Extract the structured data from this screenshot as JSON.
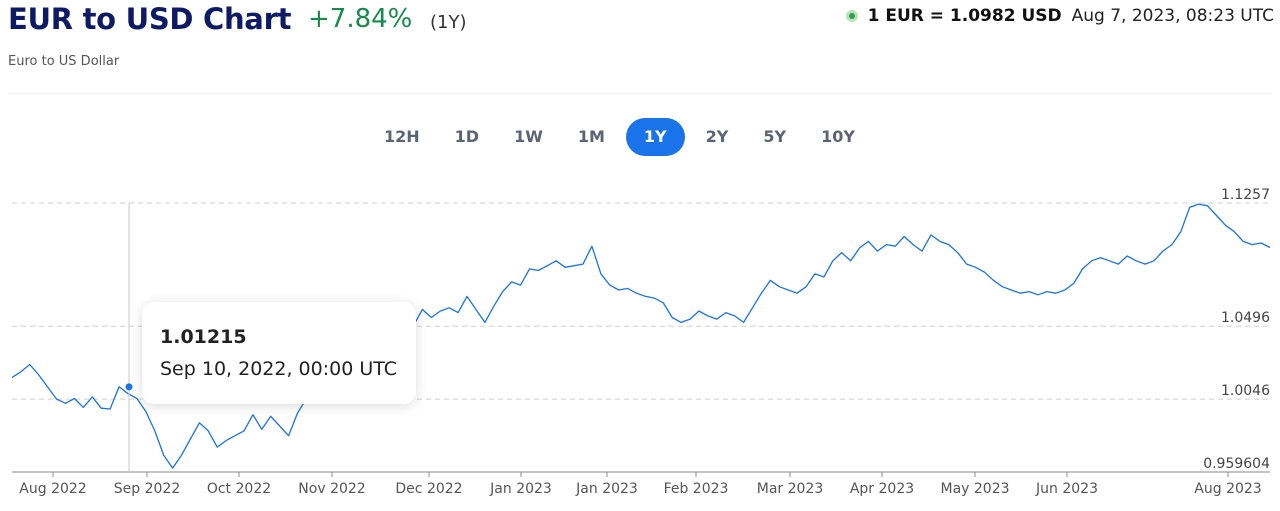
{
  "header": {
    "title": "EUR to USD Chart",
    "change": "+7.84%",
    "period": "(1Y)",
    "subtitle": "Euro to US Dollar",
    "rate": "1 EUR = 1.0982 USD",
    "timestamp": "Aug 7, 2023, 08:23 UTC"
  },
  "range_tabs": [
    {
      "label": "12H",
      "active": false
    },
    {
      "label": "1D",
      "active": false
    },
    {
      "label": "1W",
      "active": false
    },
    {
      "label": "1M",
      "active": false
    },
    {
      "label": "1Y",
      "active": true
    },
    {
      "label": "2Y",
      "active": false
    },
    {
      "label": "5Y",
      "active": false
    },
    {
      "label": "10Y",
      "active": false
    }
  ],
  "tooltip": {
    "value": "1.01215",
    "date": "Sep 10, 2022, 00:00 UTC"
  },
  "colors": {
    "line": "#1a73e8",
    "accent": "#1a73e8",
    "positive": "#178a4e",
    "title": "#0d1a66"
  },
  "chart_data": {
    "type": "line",
    "title": "EUR to USD Chart",
    "xlabel": "",
    "ylabel": "",
    "ylim": [
      0.959604,
      1.1257
    ],
    "grid": true,
    "y_ticks": [
      "1.1257",
      "1.0496",
      "1.0046",
      "0.959604"
    ],
    "x_ticks": [
      "Aug 2022",
      "Sep 2022",
      "Oct 2022",
      "Nov 2022",
      "Dec 2022",
      "Jan 2023",
      "Jan 2023",
      "Feb 2023",
      "Mar 2023",
      "Apr 2023",
      "May 2023",
      "Jun 2023",
      "Aug 2023"
    ],
    "series": [
      {
        "values": [
          1.018,
          1.0215,
          1.026,
          1.0195,
          1.012,
          1.0046,
          1.002,
          1.005,
          0.9995,
          1.006,
          0.999,
          0.9985,
          1.0122,
          1.008,
          1.005,
          0.997,
          0.985,
          0.97,
          0.962,
          0.97,
          0.98,
          0.99,
          0.985,
          0.975,
          0.979,
          0.982,
          0.985,
          0.995,
          0.986,
          0.994,
          0.988,
          0.982,
          0.996,
          1.005,
          1.018,
          1.032,
          1.038,
          1.032,
          1.036,
          1.033,
          1.038,
          1.042,
          1.048,
          1.05,
          1.047,
          1.05,
          1.06,
          1.055,
          1.059,
          1.061,
          1.058,
          1.068,
          1.06,
          1.052,
          1.062,
          1.071,
          1.077,
          1.075,
          1.085,
          1.084,
          1.087,
          1.09,
          1.086,
          1.087,
          1.088,
          1.099,
          1.082,
          1.075,
          1.072,
          1.073,
          1.07,
          1.068,
          1.067,
          1.064,
          1.055,
          1.052,
          1.054,
          1.059,
          1.056,
          1.054,
          1.058,
          1.056,
          1.052,
          1.061,
          1.07,
          1.078,
          1.074,
          1.072,
          1.07,
          1.074,
          1.082,
          1.08,
          1.09,
          1.095,
          1.09,
          1.098,
          1.102,
          1.096,
          1.1,
          1.099,
          1.105,
          1.1,
          1.096,
          1.106,
          1.102,
          1.1,
          1.095,
          1.088,
          1.086,
          1.083,
          1.078,
          1.074,
          1.072,
          1.07,
          1.071,
          1.069,
          1.071,
          1.07,
          1.072,
          1.076,
          1.085,
          1.09,
          1.092,
          1.09,
          1.088,
          1.093,
          1.09,
          1.088,
          1.09,
          1.096,
          1.1,
          1.108,
          1.123,
          1.125,
          1.124,
          1.118,
          1.112,
          1.108,
          1.102,
          1.1,
          1.101,
          1.0982
        ]
      }
    ]
  }
}
